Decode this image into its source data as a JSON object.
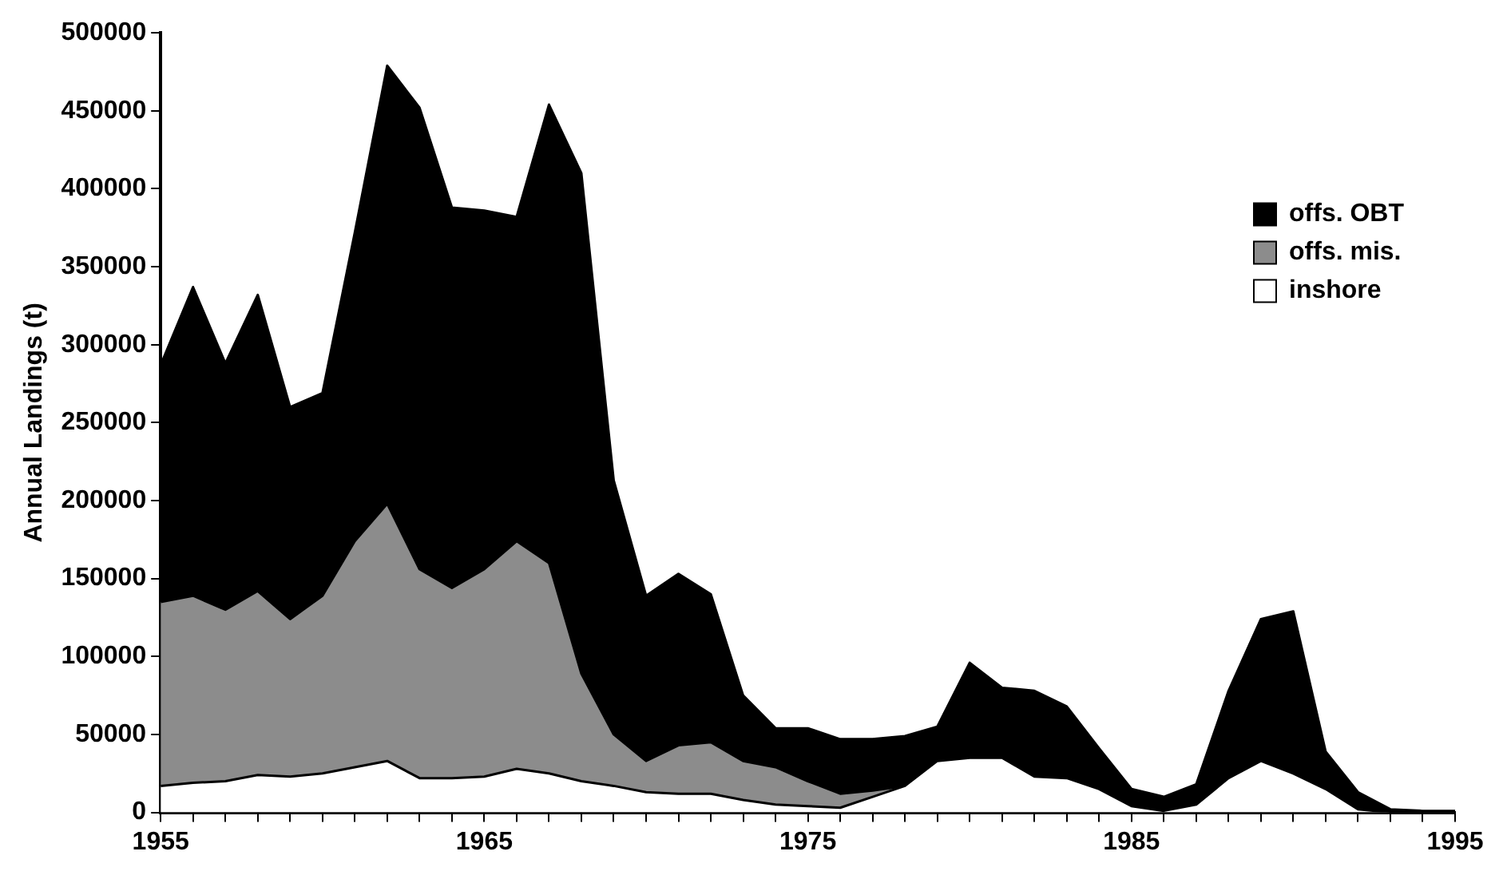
{
  "chart_data": {
    "type": "area",
    "stacked": true,
    "ylabel": "Annual Landings (t)",
    "x": [
      1955,
      1956,
      1957,
      1958,
      1959,
      1960,
      1961,
      1962,
      1963,
      1964,
      1965,
      1966,
      1967,
      1968,
      1969,
      1970,
      1971,
      1972,
      1973,
      1974,
      1975,
      1976,
      1977,
      1978,
      1979,
      1980,
      1981,
      1982,
      1983,
      1984,
      1985,
      1986,
      1987,
      1988,
      1989,
      1990,
      1991,
      1992,
      1993,
      1994,
      1995
    ],
    "series": [
      {
        "name": "inshore",
        "color": "#ffffff",
        "values": [
          17000,
          19000,
          20000,
          24000,
          23000,
          25000,
          29000,
          33000,
          22000,
          22000,
          23000,
          28000,
          25000,
          20000,
          17000,
          13000,
          12000,
          12000,
          8000,
          5000,
          4000,
          3000,
          10000,
          17000,
          33000,
          35000,
          35000,
          23000,
          22000,
          15000,
          4000,
          1000,
          5000,
          22000,
          33000,
          25000,
          15000,
          2000,
          0,
          0,
          0
        ]
      },
      {
        "name": "offs. mis.",
        "color": "#8c8c8c",
        "values": [
          118000,
          120000,
          110000,
          118000,
          101000,
          114000,
          145000,
          165000,
          134000,
          122000,
          133000,
          146000,
          135000,
          69000,
          33000,
          20000,
          31000,
          33000,
          25000,
          24000,
          16000,
          9000,
          4000,
          0,
          0,
          0,
          0,
          0,
          0,
          0,
          0,
          0,
          0,
          0,
          0,
          0,
          0,
          0,
          0,
          0,
          0
        ]
      },
      {
        "name": "offs. OBT",
        "color": "#000000",
        "values": [
          152000,
          198000,
          158000,
          190000,
          136000,
          130000,
          198000,
          281000,
          296000,
          244000,
          230000,
          208000,
          294000,
          321000,
          163000,
          106000,
          110000,
          95000,
          42000,
          25000,
          34000,
          35000,
          33000,
          32000,
          22000,
          61000,
          45000,
          55000,
          46000,
          26000,
          11000,
          9000,
          13000,
          56000,
          91000,
          104000,
          24000,
          11000,
          2000,
          1000,
          1000
        ]
      }
    ],
    "xlim": [
      1955,
      1995
    ],
    "xticks": [
      1955,
      {
        "value": 1956,
        "label": null
      },
      {
        "value": 1957,
        "label": null
      },
      {
        "value": 1958,
        "label": null
      },
      {
        "value": 1959,
        "label": null
      },
      {
        "value": 1960,
        "label": null
      },
      {
        "value": 1961,
        "label": null
      },
      {
        "value": 1962,
        "label": null
      },
      {
        "value": 1963,
        "label": null
      },
      {
        "value": 1964,
        "label": null
      },
      1965,
      {
        "value": 1966,
        "label": null
      },
      {
        "value": 1967,
        "label": null
      },
      {
        "value": 1968,
        "label": null
      },
      {
        "value": 1969,
        "label": null
      },
      {
        "value": 1970,
        "label": null
      },
      {
        "value": 1971,
        "label": null
      },
      {
        "value": 1972,
        "label": null
      },
      {
        "value": 1973,
        "label": null
      },
      {
        "value": 1974,
        "label": null
      },
      1975,
      {
        "value": 1976,
        "label": null
      },
      {
        "value": 1977,
        "label": null
      },
      {
        "value": 1978,
        "label": null
      },
      {
        "value": 1979,
        "label": null
      },
      {
        "value": 1980,
        "label": null
      },
      {
        "value": 1981,
        "label": null
      },
      {
        "value": 1982,
        "label": null
      },
      {
        "value": 1983,
        "label": null
      },
      {
        "value": 1984,
        "label": null
      },
      1985,
      {
        "value": 1986,
        "label": null
      },
      {
        "value": 1987,
        "label": null
      },
      {
        "value": 1988,
        "label": null
      },
      {
        "value": 1989,
        "label": null
      },
      {
        "value": 1990,
        "label": null
      },
      {
        "value": 1991,
        "label": null
      },
      {
        "value": 1992,
        "label": null
      },
      {
        "value": 1993,
        "label": null
      },
      {
        "value": 1994,
        "label": null
      },
      1995
    ],
    "ylim": [
      0,
      500000
    ],
    "yticks": [
      0,
      50000,
      100000,
      150000,
      200000,
      250000,
      300000,
      350000,
      400000,
      450000,
      500000
    ],
    "grid": false,
    "legend": "top right"
  }
}
